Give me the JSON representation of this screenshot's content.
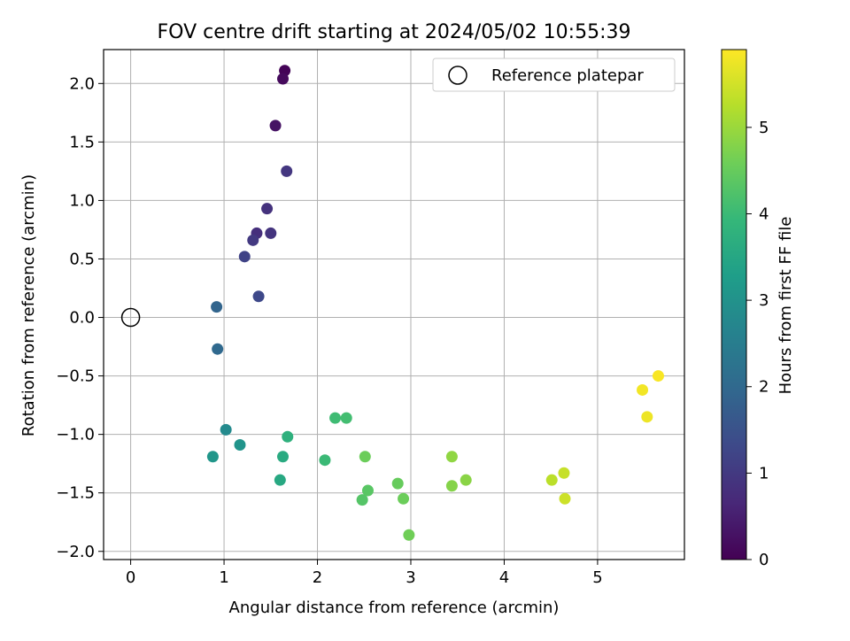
{
  "chart_data": {
    "type": "scatter",
    "title": "FOV centre drift starting at 2024/05/02 10:55:39",
    "xlabel": "Angular distance from reference (arcmin)",
    "ylabel": "Rotation from reference (arcmin)",
    "xlim": [
      -0.29,
      5.93
    ],
    "ylim": [
      -2.07,
      2.29
    ],
    "x_ticks": [
      0,
      1,
      2,
      3,
      4,
      5
    ],
    "x_tick_labels": [
      "0",
      "1",
      "2",
      "3",
      "4",
      "5"
    ],
    "y_ticks": [
      2.0,
      1.5,
      1.0,
      0.5,
      0.0,
      -0.5,
      -1.0,
      -1.5,
      -2.0
    ],
    "y_tick_labels": [
      "2.0",
      "1.5",
      "1.0",
      "0.5",
      "0.0",
      "−0.5",
      "−1.0",
      "−1.5",
      "−2.0"
    ],
    "grid": true,
    "legend": {
      "position": "top-right",
      "entries": [
        "Reference platepar"
      ]
    },
    "reference_point": {
      "x": 0,
      "y": 0
    },
    "colorbar": {
      "label": "Hours from first FF file",
      "min": 0,
      "max": 5.9,
      "ticks": [
        0,
        1,
        2,
        3,
        4,
        5
      ],
      "tick_labels": [
        "0",
        "1",
        "2",
        "3",
        "4",
        "5"
      ],
      "colormap": "viridis"
    },
    "points": [
      {
        "x": 1.65,
        "y": 2.11,
        "hours": 0.05
      },
      {
        "x": 1.63,
        "y": 2.04,
        "hours": 0.15
      },
      {
        "x": 1.55,
        "y": 1.64,
        "hours": 0.3
      },
      {
        "x": 1.67,
        "y": 1.25,
        "hours": 0.95
      },
      {
        "x": 1.46,
        "y": 0.93,
        "hours": 0.85
      },
      {
        "x": 1.35,
        "y": 0.72,
        "hours": 0.8
      },
      {
        "x": 1.5,
        "y": 0.72,
        "hours": 0.9
      },
      {
        "x": 1.31,
        "y": 0.66,
        "hours": 1.0
      },
      {
        "x": 1.22,
        "y": 0.52,
        "hours": 1.2
      },
      {
        "x": 1.37,
        "y": 0.18,
        "hours": 1.3
      },
      {
        "x": 0.92,
        "y": 0.09,
        "hours": 1.9
      },
      {
        "x": 0.93,
        "y": -0.27,
        "hours": 2.0
      },
      {
        "x": 1.02,
        "y": -0.96,
        "hours": 2.8
      },
      {
        "x": 0.88,
        "y": -1.19,
        "hours": 3.1
      },
      {
        "x": 1.17,
        "y": -1.09,
        "hours": 3.05
      },
      {
        "x": 1.63,
        "y": -1.19,
        "hours": 3.6
      },
      {
        "x": 1.68,
        "y": -1.02,
        "hours": 3.75
      },
      {
        "x": 1.6,
        "y": -1.39,
        "hours": 3.55
      },
      {
        "x": 2.08,
        "y": -1.22,
        "hours": 4.0
      },
      {
        "x": 2.19,
        "y": -0.86,
        "hours": 4.05
      },
      {
        "x": 2.31,
        "y": -0.86,
        "hours": 4.1
      },
      {
        "x": 2.51,
        "y": -1.19,
        "hours": 4.55
      },
      {
        "x": 2.48,
        "y": -1.56,
        "hours": 4.3
      },
      {
        "x": 2.54,
        "y": -1.48,
        "hours": 4.35
      },
      {
        "x": 2.86,
        "y": -1.42,
        "hours": 4.5
      },
      {
        "x": 2.92,
        "y": -1.55,
        "hours": 4.55
      },
      {
        "x": 2.98,
        "y": -1.86,
        "hours": 4.6
      },
      {
        "x": 3.44,
        "y": -1.19,
        "hours": 4.9
      },
      {
        "x": 3.44,
        "y": -1.44,
        "hours": 4.8
      },
      {
        "x": 3.59,
        "y": -1.39,
        "hours": 4.85
      },
      {
        "x": 4.51,
        "y": -1.39,
        "hours": 5.3
      },
      {
        "x": 4.64,
        "y": -1.33,
        "hours": 5.4
      },
      {
        "x": 4.65,
        "y": -1.55,
        "hours": 5.45
      },
      {
        "x": 5.48,
        "y": -0.62,
        "hours": 5.8
      },
      {
        "x": 5.53,
        "y": -0.85,
        "hours": 5.75
      },
      {
        "x": 5.65,
        "y": -0.5,
        "hours": 5.85
      }
    ]
  }
}
